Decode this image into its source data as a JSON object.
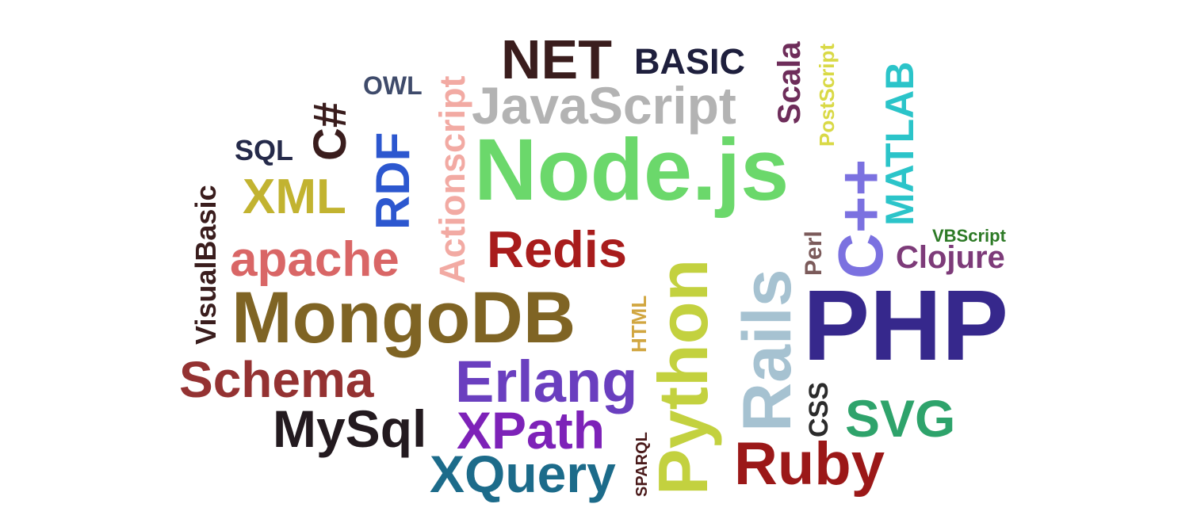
{
  "words": [
    {
      "id": "net",
      "text": "NET",
      "color": "#3a1d1d",
      "orientation": "horizontal"
    },
    {
      "id": "basic",
      "text": "BASIC",
      "color": "#1e1f3d",
      "orientation": "horizontal"
    },
    {
      "id": "scala",
      "text": "Scala",
      "color": "#6e2d5a",
      "orientation": "vertical"
    },
    {
      "id": "postscript",
      "text": "PostScript",
      "color": "#d9d946",
      "orientation": "vertical"
    },
    {
      "id": "owl",
      "text": "OWL",
      "color": "#3f4b6b",
      "orientation": "horizontal"
    },
    {
      "id": "javascript",
      "text": "JavaScript",
      "color": "#b3b3b3",
      "orientation": "horizontal"
    },
    {
      "id": "actionscript",
      "text": "Actionscript",
      "color": "#f2aaa3",
      "orientation": "vertical"
    },
    {
      "id": "csharp",
      "text": "C#",
      "color": "#3a1d1d",
      "orientation": "vertical"
    },
    {
      "id": "rdf",
      "text": "RDF",
      "color": "#2c57cf",
      "orientation": "vertical"
    },
    {
      "id": "sql",
      "text": "SQL",
      "color": "#252a4a",
      "orientation": "horizontal"
    },
    {
      "id": "visualbasic",
      "text": "VisualBasic",
      "color": "#3a1d1d",
      "orientation": "vertical"
    },
    {
      "id": "nodejs",
      "text": "Node.js",
      "color": "#6bd86b",
      "orientation": "horizontal"
    },
    {
      "id": "matlab",
      "text": "MATLAB",
      "color": "#2bc4c9",
      "orientation": "vertical"
    },
    {
      "id": "cpp",
      "text": "C++",
      "color": "#7b71e0",
      "orientation": "vertical"
    },
    {
      "id": "xml",
      "text": "XML",
      "color": "#c2b330",
      "orientation": "horizontal"
    },
    {
      "id": "apache",
      "text": "apache",
      "color": "#d96666",
      "orientation": "horizontal"
    },
    {
      "id": "redis",
      "text": "Redis",
      "color": "#a81c1c",
      "orientation": "horizontal"
    },
    {
      "id": "perl",
      "text": "Perl",
      "color": "#7b5a5a",
      "orientation": "vertical"
    },
    {
      "id": "vbscript",
      "text": "VBScript",
      "color": "#2d7a26",
      "orientation": "horizontal"
    },
    {
      "id": "clojure",
      "text": "Clojure",
      "color": "#7d3b79",
      "orientation": "horizontal"
    },
    {
      "id": "python",
      "text": "Python",
      "color": "#c3d13f",
      "orientation": "vertical"
    },
    {
      "id": "rails",
      "text": "Rails",
      "color": "#a6c2d1",
      "orientation": "vertical"
    },
    {
      "id": "mongodb",
      "text": "MongoDB",
      "color": "#7f6424",
      "orientation": "horizontal"
    },
    {
      "id": "html",
      "text": "HTML",
      "color": "#d1a640",
      "orientation": "vertical"
    },
    {
      "id": "php",
      "text": "PHP",
      "color": "#36288c",
      "orientation": "horizontal"
    },
    {
      "id": "schema",
      "text": "Schema",
      "color": "#943232",
      "orientation": "horizontal"
    },
    {
      "id": "erlang",
      "text": "Erlang",
      "color": "#6a3fbf",
      "orientation": "horizontal"
    },
    {
      "id": "css",
      "text": "CSS",
      "color": "#2b2b2b",
      "orientation": "vertical"
    },
    {
      "id": "svg",
      "text": "SVG",
      "color": "#2ea36b",
      "orientation": "horizontal"
    },
    {
      "id": "mysql",
      "text": "MySql",
      "color": "#231a1f",
      "orientation": "horizontal"
    },
    {
      "id": "xpath",
      "text": "XPath",
      "color": "#7d22b8",
      "orientation": "horizontal"
    },
    {
      "id": "sparql",
      "text": "SPARQL",
      "color": "#4a1a1a",
      "orientation": "vertical"
    },
    {
      "id": "ruby",
      "text": "Ruby",
      "color": "#9b1818",
      "orientation": "horizontal"
    },
    {
      "id": "xquery",
      "text": "XQuery",
      "color": "#1c6b8a",
      "orientation": "horizontal"
    }
  ]
}
